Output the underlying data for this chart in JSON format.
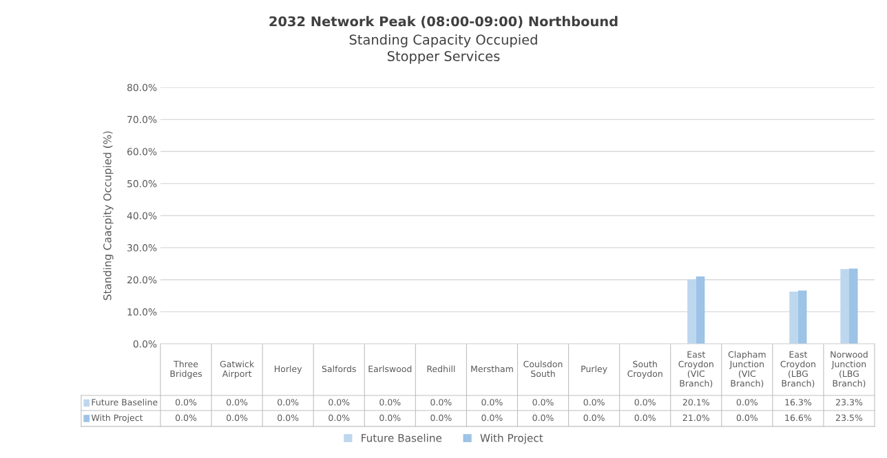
{
  "chart_data": {
    "type": "bar",
    "title": "2032 Network Peak (08:00-09:00) Northbound",
    "subtitle": "Standing Capacity Occupied\nStopper Services",
    "ylabel": "Standing Caacpity Occupied (%)",
    "categories": [
      "Three Bridges",
      "Gatwick Airport",
      "Horley",
      "Salfords",
      "Earlswood",
      "Redhill",
      "Merstham",
      "Coulsdon South",
      "Purley",
      "South Croydon",
      "East Croydon (VIC Branch)",
      "Clapham Junction (VIC Branch)",
      "East Croydon (LBG Branch)",
      "Norwood Junction (LBG Branch)"
    ],
    "series": [
      {
        "name": "Future Baseline",
        "color": "#bdd7ee",
        "values": [
          0.0,
          0.0,
          0.0,
          0.0,
          0.0,
          0.0,
          0.0,
          0.0,
          0.0,
          0.0,
          20.1,
          0.0,
          16.3,
          23.3
        ],
        "value_labels": [
          "0.0%",
          "0.0%",
          "0.0%",
          "0.0%",
          "0.0%",
          "0.0%",
          "0.0%",
          "0.0%",
          "0.0%",
          "0.0%",
          "20.1%",
          "0.0%",
          "16.3%",
          "23.3%"
        ]
      },
      {
        "name": "With Project",
        "color": "#9dc3e6",
        "values": [
          0.0,
          0.0,
          0.0,
          0.0,
          0.0,
          0.0,
          0.0,
          0.0,
          0.0,
          0.0,
          21.0,
          0.0,
          16.6,
          23.5
        ],
        "value_labels": [
          "0.0%",
          "0.0%",
          "0.0%",
          "0.0%",
          "0.0%",
          "0.0%",
          "0.0%",
          "0.0%",
          "0.0%",
          "0.0%",
          "21.0%",
          "0.0%",
          "16.6%",
          "23.5%"
        ]
      }
    ],
    "ylim": [
      0,
      80
    ],
    "yticks": [
      {
        "value": 0,
        "label": "0.0%"
      },
      {
        "value": 10,
        "label": "10.0%"
      },
      {
        "value": 20,
        "label": "20.0%"
      },
      {
        "value": 30,
        "label": "30.0%"
      },
      {
        "value": 40,
        "label": "40.0%"
      },
      {
        "value": 50,
        "label": "50.0%"
      },
      {
        "value": 60,
        "label": "60.0%"
      },
      {
        "value": 70,
        "label": "70.0%"
      },
      {
        "value": 80,
        "label": "80.0%"
      }
    ],
    "grid": "y",
    "legend": "bottom"
  }
}
